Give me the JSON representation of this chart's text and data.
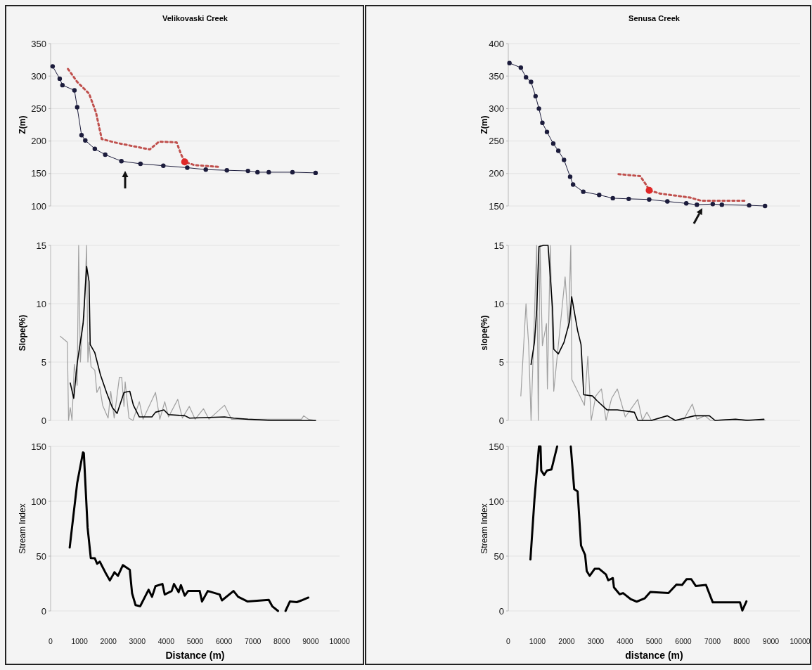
{
  "chart_data": [
    {
      "type": "line",
      "title": "Velikovaski Creek",
      "ylabel": "Z(m)",
      "xlim": [
        0,
        10000
      ],
      "ylim": [
        100,
        350
      ],
      "yticks": [
        100,
        150,
        200,
        250,
        300,
        350
      ],
      "tick_labels": "y",
      "grid": "y",
      "series": [
        {
          "type": "line",
          "color": "#1c1c3c",
          "marker": "circle",
          "x": [
            70,
            315,
            410,
            825,
            920,
            1070,
            1200,
            1530,
            1890,
            2450,
            3110,
            3900,
            4730,
            5370,
            6100,
            6830,
            7160,
            7550,
            8370,
            9170
          ],
          "values": [
            315,
            296,
            286,
            278,
            252,
            209,
            201,
            188,
            179,
            169,
            165,
            162,
            159,
            156,
            155,
            154,
            152,
            152,
            152,
            151
          ]
        },
        {
          "type": "line",
          "color": "#c0504d",
          "line_style": "dotted",
          "x": [
            600,
            920,
            1330,
            1570,
            1770,
            2300,
            3430,
            3750,
            4360,
            4520,
            4640,
            4970,
            5860
          ],
          "values": [
            311,
            291,
            273,
            244,
            203,
            197,
            187,
            199,
            198,
            179,
            168,
            163,
            160
          ]
        },
        {
          "type": "scatter",
          "color": "#e02828",
          "marker": "circle",
          "x": [
            4640
          ],
          "values": [
            168
          ]
        }
      ]
    },
    {
      "type": "line",
      "title": "Senusa Creek",
      "ylabel": "Z(m)",
      "xlim": [
        0,
        10000
      ],
      "ylim": [
        150,
        400
      ],
      "yticks": [
        150,
        200,
        250,
        300,
        350,
        400
      ],
      "tick_labels": "y",
      "grid": "y",
      "series": [
        {
          "type": "line",
          "color": "#1c1c3c",
          "marker": "circle",
          "x": [
            40,
            430,
            607,
            780,
            935,
            1050,
            1168,
            1325,
            1542,
            1715,
            1910,
            2120,
            2220,
            2570,
            3116,
            3583,
            4128,
            4829,
            5452,
            6100,
            6464,
            7008,
            7320,
            8255,
            8800
          ],
          "values": [
            370,
            363,
            348,
            341,
            319,
            300,
            278,
            264,
            246,
            235,
            221,
            195,
            183,
            172,
            167,
            162,
            161,
            160,
            157,
            154,
            152,
            153,
            152,
            151,
            150
          ]
        },
        {
          "type": "line",
          "color": "#c0504d",
          "line_style": "dotted",
          "x": [
            3778,
            4520,
            4750,
            4830,
            5217,
            6230,
            6620,
            8180
          ],
          "values": [
            199,
            196,
            181,
            174,
            169,
            163,
            158,
            158
          ]
        },
        {
          "type": "scatter",
          "color": "#e02828",
          "marker": "circle",
          "x": [
            4830
          ],
          "values": [
            174
          ]
        }
      ]
    },
    {
      "type": "line",
      "ylabel": "Slope(%)",
      "xlim": [
        0,
        10000
      ],
      "ylim": [
        0,
        15
      ],
      "yticks": [
        0,
        5,
        10,
        15
      ],
      "tick_labels": "y",
      "grid": "y",
      "series": [
        {
          "color": "#a0a0a0",
          "x": [
            340,
            580,
            620,
            680,
            740,
            820,
            920,
            970,
            1030,
            1100,
            1160,
            1245,
            1290,
            1330,
            1400,
            1530,
            1600,
            1700,
            1800,
            1990,
            2080,
            2200,
            2380,
            2460,
            2540,
            2580,
            2710,
            2850,
            3070,
            3200,
            3630,
            3780,
            3950,
            4080,
            4400,
            4560,
            4800,
            5000,
            5290,
            5480,
            6020,
            6260,
            8680,
            8760,
            8920,
            9170
          ],
          "values": [
            7.2,
            6.7,
            0,
            1.1,
            0,
            4.8,
            3,
            15,
            5,
            8,
            8.9,
            15,
            5,
            6.7,
            4.6,
            4.3,
            2.4,
            2.9,
            1.3,
            0.2,
            2.5,
            0.2,
            3.7,
            3.7,
            1.2,
            3.3,
            0.2,
            0,
            1.6,
            0.1,
            2.4,
            0.1,
            1.6,
            0.3,
            1.8,
            0.2,
            1.2,
            0.1,
            1,
            0.1,
            1.3,
            0.1,
            0.1,
            0.4,
            0.1,
            0
          ]
        },
        {
          "color": "#000000",
          "x": [
            680,
            800,
            920,
            1125,
            1245,
            1330,
            1370,
            1530,
            1725,
            1935,
            2135,
            2300,
            2540,
            2740,
            2865,
            3070,
            3505,
            3630,
            3920,
            4080,
            4650,
            4810,
            6020,
            6340,
            6830,
            7630,
            8680,
            9170
          ],
          "values": [
            3.2,
            1.9,
            4.9,
            8.3,
            13.2,
            11.9,
            6.5,
            5.8,
            3.9,
            2.4,
            1.1,
            0.6,
            2.4,
            2.5,
            1.3,
            0.3,
            0.3,
            0.7,
            0.9,
            0.5,
            0.4,
            0.2,
            0.3,
            0.2,
            0.1,
            0,
            0,
            0
          ]
        }
      ]
    },
    {
      "type": "line",
      "ylabel": "slope(%)",
      "xlim": [
        0,
        10000
      ],
      "ylim": [
        0,
        15
      ],
      "yticks": [
        0,
        5,
        10,
        15
      ],
      "tick_labels": "y",
      "grid": "y",
      "series": [
        {
          "color": "#a0a0a0",
          "x": [
            430,
            607,
            700,
            780,
            974,
            1028,
            1090,
            1168,
            1309,
            1340,
            1440,
            1558,
            1948,
            2064,
            2142,
            2180,
            2493,
            2610,
            2726,
            2843,
            3000,
            3193,
            3350,
            3543,
            3738,
            4010,
            4439,
            4595,
            4750,
            4906,
            5996,
            6151,
            6307,
            6464,
            6736,
            6930,
            7788,
            8800
          ],
          "values": [
            2.1,
            10,
            6.4,
            0,
            15,
            0,
            15,
            6.4,
            8.3,
            2.7,
            15,
            2.5,
            12.3,
            7.9,
            15,
            3.5,
            1.9,
            1.3,
            5.5,
            0,
            2.1,
            2.7,
            0,
            1.9,
            2.7,
            0.3,
            1.8,
            0,
            0.7,
            0,
            0,
            0.7,
            1.4,
            0.1,
            0.4,
            0,
            0.1,
            0
          ]
        },
        {
          "color": "#000000",
          "x": [
            780,
            897,
            974,
            1051,
            1208,
            1363,
            1519,
            1558,
            1715,
            1910,
            2103,
            2173,
            2376,
            2493,
            2586,
            2883,
            3037,
            3387,
            3738,
            4322,
            4439,
            4906,
            5451,
            5723,
            6387,
            6892,
            7086,
            7788,
            8178,
            8762
          ],
          "values": [
            4.8,
            6.7,
            9.5,
            14.9,
            15,
            15,
            9.5,
            6.1,
            5.7,
            6.7,
            8.5,
            10.6,
            7.7,
            6.5,
            2.2,
            2.1,
            1.7,
            0.9,
            0.9,
            0.7,
            0,
            0,
            0.4,
            0,
            0.4,
            0.4,
            0,
            0.1,
            0,
            0.1
          ]
        }
      ]
    },
    {
      "type": "line",
      "ylabel": "Stream Index",
      "xlabel": "Distance (m)",
      "xlim": [
        0,
        10000
      ],
      "ylim": [
        0,
        150
      ],
      "yticks": [
        0,
        50,
        100,
        150
      ],
      "xticks": [
        0,
        1000,
        2000,
        3000,
        4000,
        5000,
        6000,
        7000,
        8000,
        9000,
        10000
      ],
      "grid": "y",
      "series": [
        {
          "color": "#000000",
          "x": [
            660,
            920,
            1120,
            1150,
            1280,
            1390,
            1530,
            1610,
            1700,
            1890,
            2050,
            2210,
            2330,
            2500,
            2740,
            2820,
            2940,
            3100,
            3390,
            3510,
            3630,
            3870,
            3950,
            4190,
            4270,
            4430,
            4510,
            4640,
            4760,
            5160,
            5240,
            5440,
            5850,
            5930,
            6330,
            6490,
            6820,
            7550,
            7670,
            7870,
            8000,
            8130,
            8280,
            8520,
            8680,
            8920
          ],
          "values": [
            57.8,
            116.7,
            144.6,
            144,
            76,
            48.2,
            48,
            43,
            45,
            35.3,
            27.8,
            35.3,
            32,
            41.8,
            37.5,
            16,
            5.3,
            4.3,
            19.3,
            12.9,
            22.6,
            24.6,
            15,
            18.2,
            24.6,
            17.1,
            23.5,
            13.9,
            18.2,
            18.2,
            8.6,
            18.2,
            15,
            9.6,
            18.2,
            12.9,
            8.6,
            10.1,
            4.3,
            0,
            null,
            0,
            8.6,
            8,
            9.6,
            12.2
          ]
        }
      ]
    },
    {
      "type": "line",
      "ylabel": "Stream Index",
      "xlabel": "distance (m)",
      "xlim": [
        0,
        10000
      ],
      "ylim": [
        0,
        150
      ],
      "yticks": [
        0,
        50,
        100,
        150
      ],
      "xticks": [
        0,
        1000,
        2000,
        3000,
        4000,
        5000,
        6000,
        7000,
        8000,
        9000,
        10000
      ],
      "grid": "y",
      "series": [
        {
          "color": "#000000",
          "x": [
            759,
            897,
            1051,
            1105,
            1129,
            1230,
            1325,
            1480,
            1675,
            1900,
            2142,
            2259,
            2376,
            2493,
            2633,
            2688,
            2789,
            2960,
            3116,
            3349,
            3427,
            3583,
            3622,
            3817,
            3934,
            4205,
            4401,
            4673,
            4868,
            5491,
            5763,
            5957,
            6113,
            6270,
            6425,
            6776,
            7009,
            7943,
            8022,
            8162
          ],
          "values": [
            46.9,
            101.8,
            150,
            150,
            128,
            124,
            128,
            129,
            150,
            null,
            150,
            111,
            109,
            59.6,
            51,
            36.4,
            32,
            38.4,
            38.4,
            33.2,
            27.9,
            30,
            21.5,
            15.2,
            16.3,
            10.6,
            8.5,
            11.4,
            17.3,
            16.3,
            24,
            23.7,
            29,
            29,
            22.8,
            23.7,
            7.8,
            7.8,
            0.4,
            8.7
          ]
        }
      ]
    }
  ]
}
